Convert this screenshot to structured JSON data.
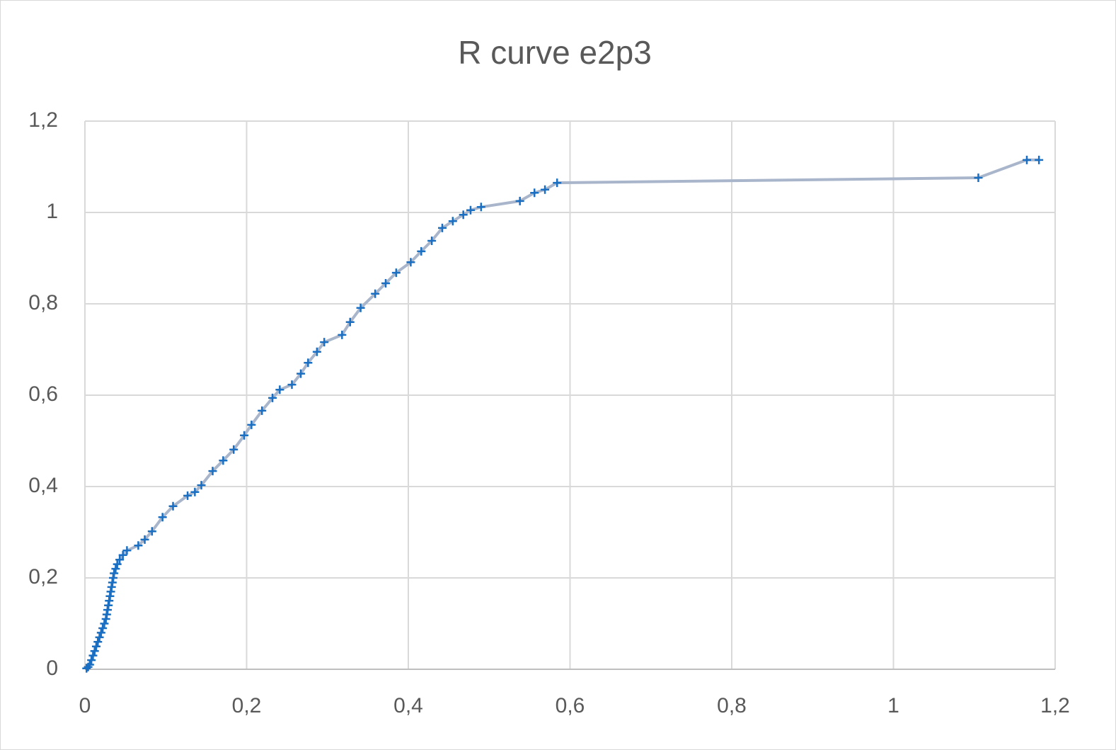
{
  "chart_data": {
    "type": "scatter",
    "title": "R curve e2p3",
    "x": [
      0.002,
      0.004,
      0.006,
      0.008,
      0.01,
      0.012,
      0.014,
      0.016,
      0.018,
      0.02,
      0.022,
      0.024,
      0.026,
      0.027,
      0.028,
      0.029,
      0.03,
      0.031,
      0.032,
      0.033,
      0.034,
      0.035,
      0.036,
      0.038,
      0.04,
      0.043,
      0.047,
      0.052,
      0.066,
      0.074,
      0.083,
      0.096,
      0.109,
      0.127,
      0.136,
      0.144,
      0.158,
      0.171,
      0.184,
      0.197,
      0.206,
      0.219,
      0.232,
      0.241,
      0.256,
      0.267,
      0.276,
      0.287,
      0.296,
      0.318,
      0.328,
      0.341,
      0.359,
      0.372,
      0.385,
      0.403,
      0.416,
      0.429,
      0.442,
      0.455,
      0.468,
      0.477,
      0.49,
      0.538,
      0.556,
      0.569,
      0.584,
      1.105,
      1.165,
      1.18
    ],
    "values": [
      0.002,
      0.005,
      0.01,
      0.02,
      0.03,
      0.04,
      0.05,
      0.06,
      0.07,
      0.08,
      0.09,
      0.1,
      0.11,
      0.12,
      0.13,
      0.14,
      0.15,
      0.16,
      0.17,
      0.18,
      0.19,
      0.2,
      0.21,
      0.22,
      0.23,
      0.24,
      0.25,
      0.26,
      0.271,
      0.284,
      0.302,
      0.333,
      0.357,
      0.38,
      0.388,
      0.403,
      0.434,
      0.457,
      0.481,
      0.512,
      0.535,
      0.566,
      0.594,
      0.612,
      0.623,
      0.647,
      0.671,
      0.695,
      0.716,
      0.732,
      0.76,
      0.791,
      0.822,
      0.845,
      0.868,
      0.891,
      0.915,
      0.938,
      0.966,
      0.981,
      0.995,
      1.005,
      1.012,
      1.025,
      1.043,
      1.05,
      1.065,
      1.076,
      1.115,
      1.115
    ],
    "line_color": "#a8b5ca",
    "marker_color": "#1a6fc2",
    "marker": "+",
    "xlim": [
      0,
      1.2
    ],
    "xticks": [
      0,
      {
        "value": 0.2,
        "label": "0,2"
      },
      {
        "value": 0.4,
        "label": "0,4"
      },
      {
        "value": 0.6,
        "label": "0,6"
      },
      {
        "value": 0.8,
        "label": "0,8"
      },
      1,
      {
        "value": 1.2,
        "label": "1,2"
      }
    ],
    "ylim": [
      0,
      1.2
    ],
    "yticks": [
      0,
      {
        "value": 0.2,
        "label": "0,2"
      },
      {
        "value": 0.4,
        "label": "0,4"
      },
      {
        "value": 0.6,
        "label": "0,6"
      },
      {
        "value": 0.8,
        "label": "0,8"
      },
      1,
      {
        "value": 1.2,
        "label": "1,2"
      }
    ],
    "grid": true
  }
}
